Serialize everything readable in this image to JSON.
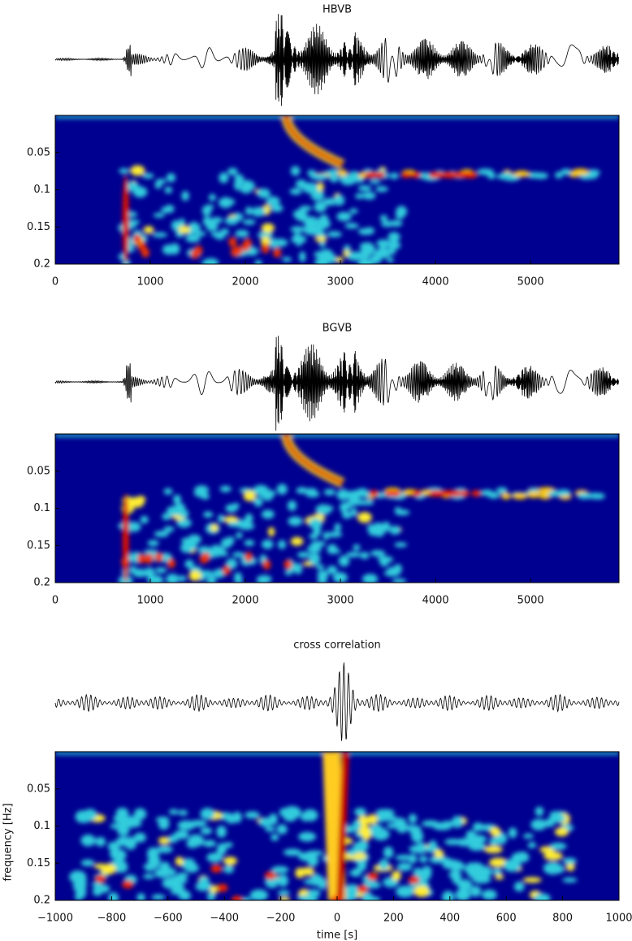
{
  "chart_data": [
    {
      "type": "spectrogram",
      "title": "HBVB",
      "xlim": [
        0,
        5930
      ],
      "xticks": [
        0,
        1000,
        2000,
        3000,
        4000,
        5000
      ],
      "ylim": [
        0,
        0.2
      ],
      "yticks": [
        0.05,
        0.1,
        0.15,
        0.2
      ]
    },
    {
      "type": "spectrogram",
      "title": "BGVB",
      "xlim": [
        0,
        5930
      ],
      "xticks": [
        0,
        1000,
        2000,
        3000,
        4000,
        5000
      ],
      "ylim": [
        0,
        0.2
      ],
      "yticks": [
        0.05,
        0.1,
        0.15,
        0.2
      ]
    },
    {
      "type": "spectrogram",
      "title": "cross correlation",
      "xlabel": "time [s]",
      "ylabel": "frequency [Hz]",
      "xlim": [
        -1000,
        1000
      ],
      "xticks": [
        {
          "value": -1000,
          "label": "−1000"
        },
        {
          "value": -800,
          "label": "−800"
        },
        {
          "value": -600,
          "label": "−600"
        },
        {
          "value": -400,
          "label": "−400"
        },
        {
          "value": -200,
          "label": "−200"
        },
        0,
        200,
        400,
        600,
        800,
        1000
      ],
      "ylim": [
        0,
        0.2
      ],
      "yticks": [
        0.05,
        0.1,
        0.15,
        0.2
      ]
    }
  ]
}
